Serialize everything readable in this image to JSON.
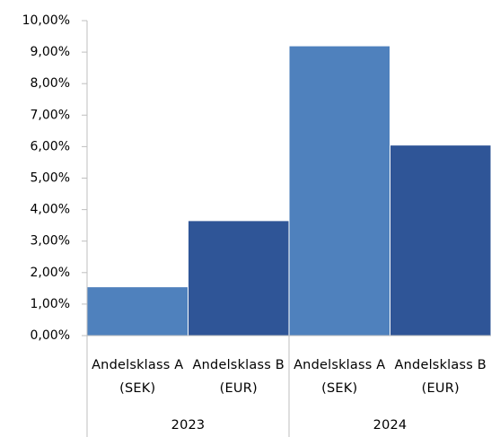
{
  "chart_data": {
    "type": "bar",
    "categories": [
      "2023",
      "2024"
    ],
    "series": [
      {
        "name": "Andelsklass A (SEK)",
        "color": "#4f81bd",
        "values": [
          1.55,
          9.2
        ]
      },
      {
        "name": "Andelsklass B (EUR)",
        "color": "#2f5597",
        "values": [
          3.65,
          6.05
        ]
      }
    ],
    "ylim": [
      0,
      10
    ],
    "yticks": [
      {
        "value": 0,
        "label": "0,00%"
      },
      {
        "value": 1,
        "label": "1,00%"
      },
      {
        "value": 2,
        "label": "2,00%"
      },
      {
        "value": 3,
        "label": "3,00%"
      },
      {
        "value": 4,
        "label": "4,00%"
      },
      {
        "value": 5,
        "label": "5,00%"
      },
      {
        "value": 6,
        "label": "6,00%"
      },
      {
        "value": 7,
        "label": "7,00%"
      },
      {
        "value": 8,
        "label": "8,00%"
      },
      {
        "value": 9,
        "label": "9,00%"
      },
      {
        "value": 10,
        "label": "10,00%"
      }
    ],
    "grid": false
  }
}
